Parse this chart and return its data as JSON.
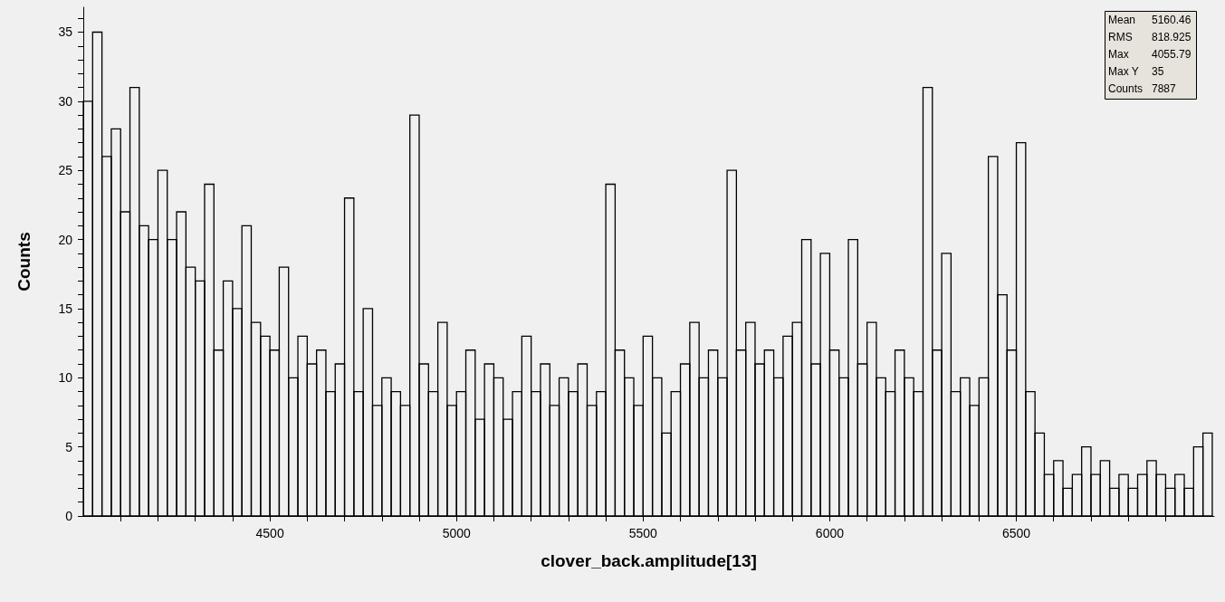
{
  "chart_data": {
    "type": "histogram",
    "xlabel": "clover_back.amplitude[13]",
    "ylabel": "Counts",
    "annotations": [
      "Mean 5160.46",
      "RMS 818.925",
      "Max 4055.79",
      "Max Y 35",
      "Counts 7887"
    ],
    "bins": [
      4000,
      4025,
      4050,
      4075,
      4100,
      4125,
      4150,
      4175,
      4200,
      4225,
      4250,
      4275,
      4300,
      4325,
      4350,
      4375,
      4400,
      4425,
      4450,
      4475,
      4500,
      4525,
      4550,
      4575,
      4600,
      4625,
      4650,
      4675,
      4700,
      4725,
      4750,
      4775,
      4800,
      4825,
      4850,
      4875,
      4900,
      4925,
      4950,
      4975,
      5000,
      5025,
      5050,
      5075,
      5100,
      5125,
      5150,
      5175,
      5200,
      5225,
      5250,
      5275,
      5300,
      5325,
      5350,
      5375,
      5400,
      5425,
      5450,
      5475,
      5500,
      5525,
      5550,
      5575,
      5600,
      5625,
      5650,
      5675,
      5700,
      5725,
      5750,
      5775,
      5800,
      5825,
      5850,
      5875,
      5900,
      5925,
      5950,
      5975,
      6000,
      6025,
      6050,
      6075,
      6100,
      6125,
      6150,
      6175,
      6200,
      6225,
      6250,
      6275,
      6300,
      6325,
      6350,
      6375,
      6400,
      6425,
      6450,
      6475,
      6500,
      6525,
      6550,
      6575,
      6600,
      6625,
      6650,
      6675,
      6700,
      6725,
      6750,
      6775,
      6800,
      6825,
      6850,
      6875,
      6900,
      6925,
      6950,
      6975,
      7000,
      7025
    ],
    "values": [
      30,
      35,
      26,
      28,
      22,
      31,
      21,
      20,
      25,
      20,
      22,
      18,
      17,
      24,
      12,
      17,
      15,
      21,
      14,
      13,
      12,
      18,
      10,
      13,
      11,
      12,
      9,
      11,
      23,
      9,
      15,
      8,
      10,
      9,
      8,
      29,
      11,
      9,
      14,
      8,
      9,
      12,
      7,
      11,
      10,
      7,
      9,
      13,
      9,
      11,
      8,
      10,
      9,
      11,
      8,
      9,
      24,
      12,
      10,
      8,
      13,
      10,
      6,
      9,
      11,
      14,
      10,
      12,
      10,
      25,
      12,
      14,
      11,
      12,
      10,
      13,
      14,
      20,
      11,
      19,
      12,
      10,
      20,
      11,
      14,
      10,
      9,
      12,
      10,
      9,
      31,
      12,
      19,
      9,
      10,
      8,
      10,
      26,
      16,
      12,
      27,
      9,
      6,
      3,
      4,
      2,
      3,
      5,
      3,
      4,
      2,
      3,
      2,
      3,
      4,
      3,
      2,
      3,
      2,
      5,
      6
    ],
    "color": "#000000",
    "xlim": [
      4000,
      7030
    ],
    "xticks": [
      {
        "value": 4100,
        "label": null
      },
      {
        "value": 4200,
        "label": null
      },
      {
        "value": 4300,
        "label": null
      },
      {
        "value": 4400,
        "label": null
      },
      4500,
      {
        "value": 4600,
        "label": null
      },
      {
        "value": 4700,
        "label": null
      },
      {
        "value": 4800,
        "label": null
      },
      {
        "value": 4900,
        "label": null
      },
      5000,
      {
        "value": 5100,
        "label": null
      },
      {
        "value": 5200,
        "label": null
      },
      {
        "value": 5300,
        "label": null
      },
      {
        "value": 5400,
        "label": null
      },
      5500,
      {
        "value": 5600,
        "label": null
      },
      {
        "value": 5700,
        "label": null
      },
      {
        "value": 5800,
        "label": null
      },
      {
        "value": 5900,
        "label": null
      },
      6000,
      {
        "value": 6100,
        "label": null
      },
      {
        "value": 6200,
        "label": null
      },
      {
        "value": 6300,
        "label": null
      },
      {
        "value": 6400,
        "label": null
      },
      6500,
      {
        "value": 6600,
        "label": null
      },
      {
        "value": 6700,
        "label": null
      },
      {
        "value": 6800,
        "label": null
      },
      {
        "value": 6900,
        "label": null
      }
    ],
    "ylim": [
      0,
      36.8
    ],
    "yticks": [
      0,
      {
        "value": 1,
        "label": null
      },
      {
        "value": 2,
        "label": null
      },
      {
        "value": 3,
        "label": null
      },
      {
        "value": 4,
        "label": null
      },
      5,
      {
        "value": 6,
        "label": null
      },
      {
        "value": 7,
        "label": null
      },
      {
        "value": 8,
        "label": null
      },
      {
        "value": 9,
        "label": null
      },
      10,
      {
        "value": 11,
        "label": null
      },
      {
        "value": 12,
        "label": null
      },
      {
        "value": 13,
        "label": null
      },
      {
        "value": 14,
        "label": null
      },
      15,
      {
        "value": 16,
        "label": null
      },
      {
        "value": 17,
        "label": null
      },
      {
        "value": 18,
        "label": null
      },
      {
        "value": 19,
        "label": null
      },
      20,
      {
        "value": 21,
        "label": null
      },
      {
        "value": 22,
        "label": null
      },
      {
        "value": 23,
        "label": null
      },
      {
        "value": 24,
        "label": null
      },
      25,
      {
        "value": 26,
        "label": null
      },
      {
        "value": 27,
        "label": null
      },
      {
        "value": 28,
        "label": null
      },
      {
        "value": 29,
        "label": null
      },
      30,
      {
        "value": 31,
        "label": null
      },
      {
        "value": 32,
        "label": null
      },
      {
        "value": 33,
        "label": null
      },
      {
        "value": 34,
        "label": null
      },
      35,
      {
        "value": 36,
        "label": null
      }
    ],
    "grid": false
  }
}
